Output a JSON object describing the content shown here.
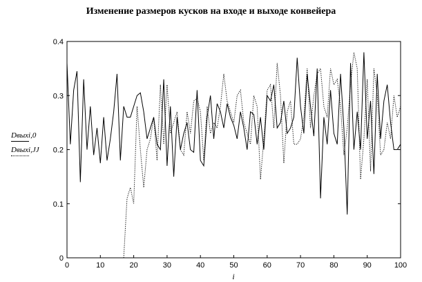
{
  "chart_data": {
    "type": "line",
    "title": "Изменение размеров кусков на входе и выходе конвейера",
    "xlabel": "i",
    "ylabel": "",
    "xlim": [
      0,
      100
    ],
    "ylim": [
      0,
      0.4
    ],
    "x_ticks": [
      "0",
      "10",
      "20",
      "30",
      "40",
      "50",
      "60",
      "70",
      "80",
      "90",
      "100"
    ],
    "y_ticks": [
      "0",
      "0.1",
      "0.2",
      "0.3",
      "0.4"
    ],
    "grid": false,
    "legend_position": "left",
    "series": [
      {
        "name": "Dвых i,0",
        "style": "solid",
        "color": "#000000",
        "x": [
          0,
          1,
          2,
          3,
          4,
          5,
          6,
          7,
          8,
          9,
          10,
          11,
          12,
          13,
          14,
          15,
          16,
          17,
          18,
          19,
          20,
          21,
          22,
          23,
          24,
          25,
          26,
          27,
          28,
          29,
          30,
          31,
          32,
          33,
          34,
          35,
          36,
          37,
          38,
          39,
          40,
          41,
          42,
          43,
          44,
          45,
          46,
          47,
          48,
          49,
          50,
          51,
          52,
          53,
          54,
          55,
          56,
          57,
          58,
          59,
          60,
          61,
          62,
          63,
          64,
          65,
          66,
          67,
          68,
          69,
          70,
          71,
          72,
          73,
          74,
          75,
          76,
          77,
          78,
          79,
          80,
          81,
          82,
          83,
          84,
          85,
          86,
          87,
          88,
          89,
          90,
          91,
          92,
          93,
          94,
          95,
          96,
          97,
          98,
          99,
          100
        ],
        "values": [
          0.36,
          0.21,
          0.31,
          0.345,
          0.14,
          0.33,
          0.2,
          0.28,
          0.19,
          0.24,
          0.175,
          0.26,
          0.18,
          0.22,
          0.27,
          0.34,
          0.18,
          0.28,
          0.26,
          0.26,
          0.28,
          0.3,
          0.305,
          0.27,
          0.22,
          0.24,
          0.26,
          0.21,
          0.2,
          0.33,
          0.17,
          0.28,
          0.15,
          0.26,
          0.2,
          0.23,
          0.25,
          0.2,
          0.195,
          0.31,
          0.18,
          0.17,
          0.26,
          0.3,
          0.22,
          0.285,
          0.27,
          0.24,
          0.285,
          0.26,
          0.245,
          0.22,
          0.27,
          0.24,
          0.2,
          0.27,
          0.265,
          0.21,
          0.26,
          0.2,
          0.3,
          0.29,
          0.32,
          0.24,
          0.25,
          0.29,
          0.23,
          0.24,
          0.26,
          0.37,
          0.28,
          0.23,
          0.34,
          0.28,
          0.225,
          0.35,
          0.11,
          0.26,
          0.21,
          0.31,
          0.23,
          0.21,
          0.34,
          0.24,
          0.08,
          0.36,
          0.2,
          0.27,
          0.2,
          0.38,
          0.22,
          0.29,
          0.155,
          0.34,
          0.22,
          0.29,
          0.32,
          0.25,
          0.2,
          0.2,
          0.21
        ]
      },
      {
        "name": "Dвых i,JJ",
        "style": "dotted",
        "color": "#000000",
        "x": [
          17,
          18,
          19,
          20,
          21,
          22,
          23,
          24,
          25,
          26,
          27,
          28,
          29,
          30,
          31,
          32,
          33,
          34,
          35,
          36,
          37,
          38,
          39,
          40,
          41,
          42,
          43,
          44,
          45,
          46,
          47,
          48,
          49,
          50,
          51,
          52,
          53,
          54,
          55,
          56,
          57,
          58,
          59,
          60,
          61,
          62,
          63,
          64,
          65,
          66,
          67,
          68,
          69,
          70,
          71,
          72,
          73,
          74,
          75,
          76,
          77,
          78,
          79,
          80,
          81,
          82,
          83,
          84,
          85,
          86,
          87,
          88,
          89,
          90,
          91,
          92,
          93,
          94,
          95,
          96,
          97,
          98,
          99,
          100
        ],
        "values": [
          0.0,
          0.11,
          0.13,
          0.1,
          0.28,
          0.2,
          0.13,
          0.2,
          0.22,
          0.26,
          0.18,
          0.32,
          0.21,
          0.32,
          0.23,
          0.25,
          0.27,
          0.2,
          0.19,
          0.27,
          0.23,
          0.29,
          0.295,
          0.27,
          0.18,
          0.28,
          0.23,
          0.25,
          0.24,
          0.28,
          0.34,
          0.29,
          0.27,
          0.25,
          0.3,
          0.31,
          0.25,
          0.23,
          0.21,
          0.3,
          0.28,
          0.145,
          0.22,
          0.31,
          0.32,
          0.24,
          0.36,
          0.3,
          0.175,
          0.27,
          0.29,
          0.21,
          0.21,
          0.22,
          0.26,
          0.35,
          0.24,
          0.3,
          0.34,
          0.35,
          0.28,
          0.26,
          0.35,
          0.32,
          0.33,
          0.28,
          0.19,
          0.24,
          0.32,
          0.38,
          0.35,
          0.145,
          0.22,
          0.33,
          0.16,
          0.35,
          0.3,
          0.19,
          0.2,
          0.25,
          0.22,
          0.3,
          0.26,
          0.28
        ]
      }
    ]
  },
  "legend": {
    "series0_label": "Dвыхi,0",
    "series1_label": "Dвыхi,JJ"
  }
}
